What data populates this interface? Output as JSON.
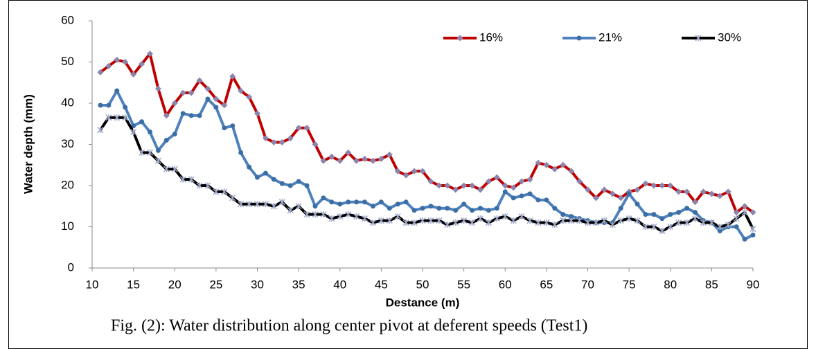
{
  "chart_data": {
    "type": "line",
    "caption": "Fig. (2): Water distribution along center pivot at deferent speeds (Test1)",
    "xlabel": "Destance (m)",
    "ylabel": "Water depth (mm)",
    "x": [
      11,
      12,
      13,
      14,
      15,
      16,
      17,
      18,
      19,
      20,
      21,
      22,
      23,
      24,
      25,
      26,
      27,
      28,
      29,
      30,
      31,
      32,
      33,
      34,
      35,
      36,
      37,
      38,
      39,
      40,
      41,
      42,
      43,
      44,
      45,
      46,
      47,
      48,
      49,
      50,
      51,
      52,
      53,
      54,
      55,
      56,
      57,
      58,
      59,
      60,
      61,
      62,
      63,
      64,
      65,
      66,
      67,
      68,
      69,
      70,
      71,
      72,
      73,
      74,
      75,
      76,
      77,
      78,
      79,
      80,
      81,
      82,
      83,
      84,
      85,
      86,
      87,
      88,
      89,
      90
    ],
    "xlim": [
      10,
      90
    ],
    "xticks": [
      10,
      15,
      20,
      25,
      30,
      35,
      40,
      45,
      50,
      55,
      60,
      65,
      70,
      75,
      80,
      85,
      90
    ],
    "ylim": [
      0,
      60
    ],
    "yticks": [
      0,
      10,
      20,
      30,
      40,
      50,
      60
    ],
    "legend": "upper right",
    "series": [
      {
        "name": "16%",
        "color": "#c00000",
        "marker": "diamond",
        "marker_color": "#8c84ac",
        "values": [
          47.5,
          49,
          50.5,
          50,
          47,
          49.5,
          52,
          43.5,
          37,
          40,
          42.5,
          42.5,
          45.5,
          43.5,
          41,
          39.5,
          46.5,
          43,
          41.5,
          37.5,
          31.5,
          30.5,
          30.5,
          31.5,
          34,
          34,
          30,
          26,
          27,
          26,
          28,
          26,
          26.5,
          26,
          26.5,
          27.5,
          23.5,
          22.5,
          23.5,
          23.5,
          21,
          20,
          20,
          19,
          20,
          20,
          19,
          21,
          22,
          20,
          19.5,
          21,
          21.5,
          25.5,
          25,
          24,
          25,
          23.5,
          21,
          19,
          17,
          19,
          18,
          17,
          18.5,
          19,
          20.5,
          20,
          20,
          20,
          18.5,
          18.5,
          16,
          18.5,
          18,
          17.5,
          18.5,
          13.5,
          15,
          13.5
        ]
      },
      {
        "name": "21%",
        "color": "#4f81bd",
        "marker": "circle",
        "marker_color": "#3a6ea5",
        "values": [
          39.5,
          39.5,
          43,
          39,
          34.5,
          35.5,
          33,
          28.5,
          31,
          32.5,
          37.5,
          37,
          37,
          41,
          39,
          34,
          34.5,
          28,
          24.5,
          22,
          23,
          21.5,
          20.5,
          20,
          21,
          20,
          15,
          17,
          16,
          15.5,
          16,
          16,
          16,
          15,
          16,
          14.5,
          15.5,
          16,
          14,
          14.5,
          15,
          14.5,
          14.5,
          14,
          15.5,
          14,
          14.5,
          14,
          14.5,
          18.5,
          17,
          17.5,
          18,
          16.5,
          16.5,
          14.5,
          13,
          12.5,
          12,
          11.5,
          11,
          11,
          11,
          14.5,
          18,
          15.5,
          13,
          13,
          12,
          13,
          13.5,
          14.5,
          13.5,
          11.5,
          11,
          9,
          10,
          10,
          7,
          8
        ]
      },
      {
        "name": "30%",
        "color": "#000000",
        "marker": "star",
        "marker_color": "#9fa8c8",
        "values": [
          33.5,
          36.5,
          36.5,
          36.5,
          33,
          28,
          28,
          26,
          24,
          24,
          21.5,
          21.5,
          20,
          20,
          18.5,
          18.5,
          17,
          15.5,
          15.5,
          15.5,
          15.5,
          15,
          16,
          14,
          15,
          13,
          13,
          13,
          12,
          12.5,
          13,
          12.5,
          12,
          11,
          11.5,
          11.5,
          12.5,
          11,
          11,
          11.5,
          11.5,
          11.5,
          10.5,
          11,
          11.5,
          11,
          12,
          11,
          12,
          12.5,
          11.5,
          12.5,
          11.5,
          11,
          11,
          10.5,
          11.5,
          11.5,
          11.5,
          11,
          11,
          11.5,
          10.5,
          11.5,
          12,
          11.5,
          10,
          10,
          9,
          10,
          11,
          11,
          12,
          11,
          11,
          10,
          10.5,
          12,
          13.5,
          9.5
        ]
      }
    ]
  }
}
